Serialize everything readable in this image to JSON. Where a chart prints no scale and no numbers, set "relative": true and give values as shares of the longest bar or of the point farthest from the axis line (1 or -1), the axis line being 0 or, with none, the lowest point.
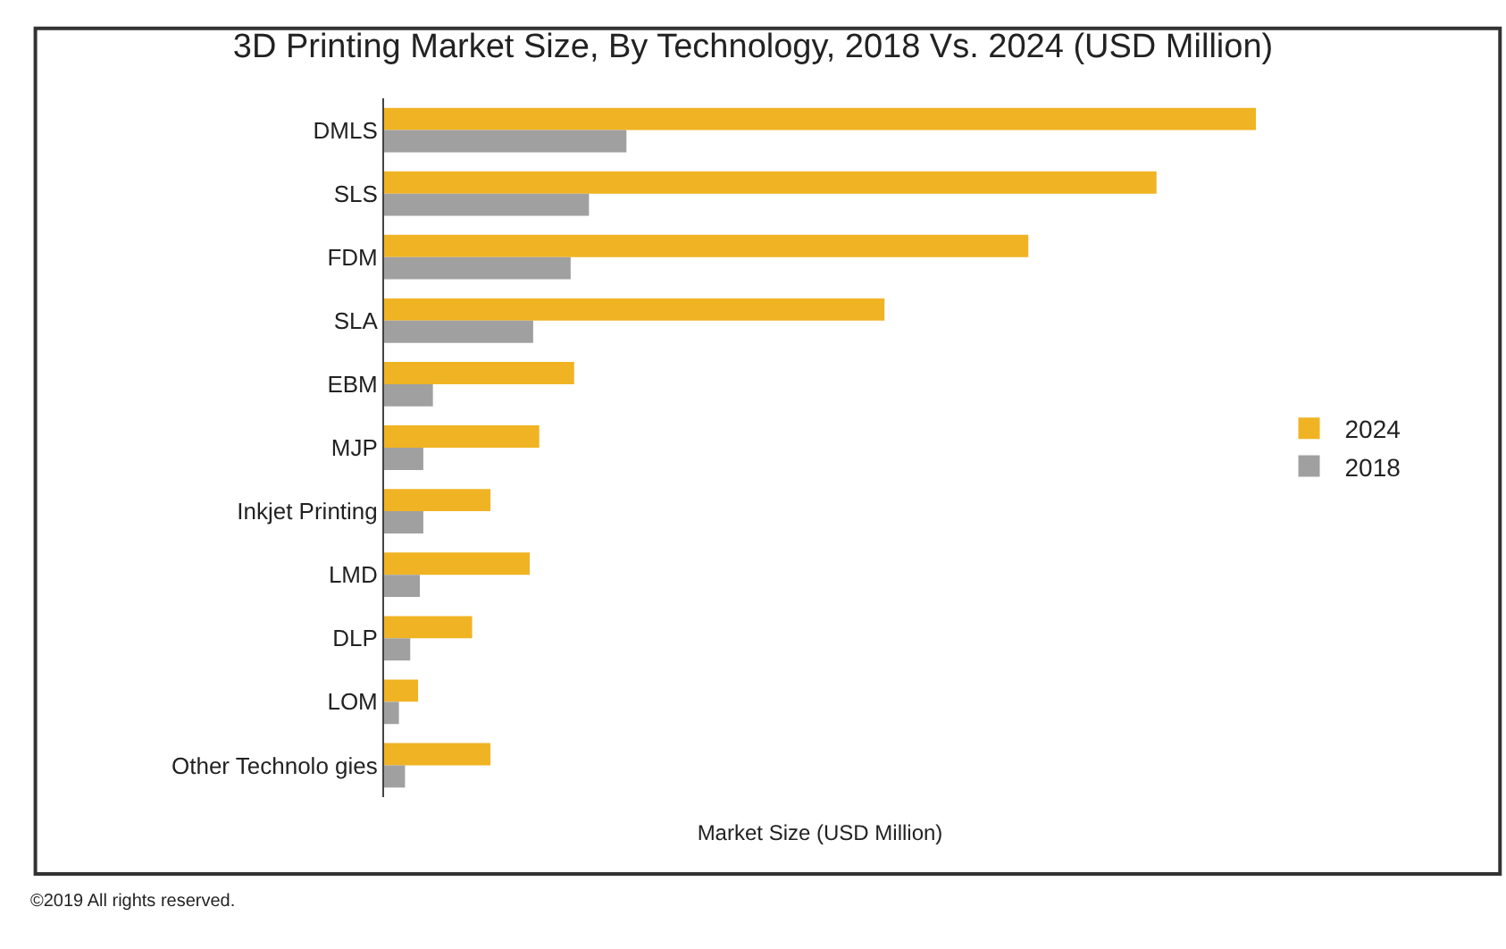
{
  "chart_data": {
    "type": "bar",
    "orientation": "horizontal",
    "relative": true,
    "title": "3D Printing Market Size, By Technology, 2018 Vs. 2024 (USD Million)",
    "xlabel": "Market Size (USD Million)",
    "categories": [
      "DMLS",
      "SLS",
      "FDM",
      "SLA",
      "EBM",
      "MJP",
      "Inkjet Printing",
      "LMD",
      "DLP",
      "LOM",
      "Other Technolo gies"
    ],
    "series": [
      {
        "name": "2024",
        "color": "#f0b323",
        "values": [
          1,
          0.886,
          0.739,
          0.574,
          0.218,
          0.178,
          0.122,
          0.167,
          0.101,
          0.039,
          0.122
        ]
      },
      {
        "name": "2018",
        "color": "#a0a0a0",
        "values": [
          0.278,
          0.235,
          0.214,
          0.171,
          0.056,
          0.045,
          0.045,
          0.041,
          0.03,
          0.017,
          0.024
        ]
      }
    ],
    "legend": "right",
    "annotations": [
      "©2019 All rights reserved."
    ]
  }
}
